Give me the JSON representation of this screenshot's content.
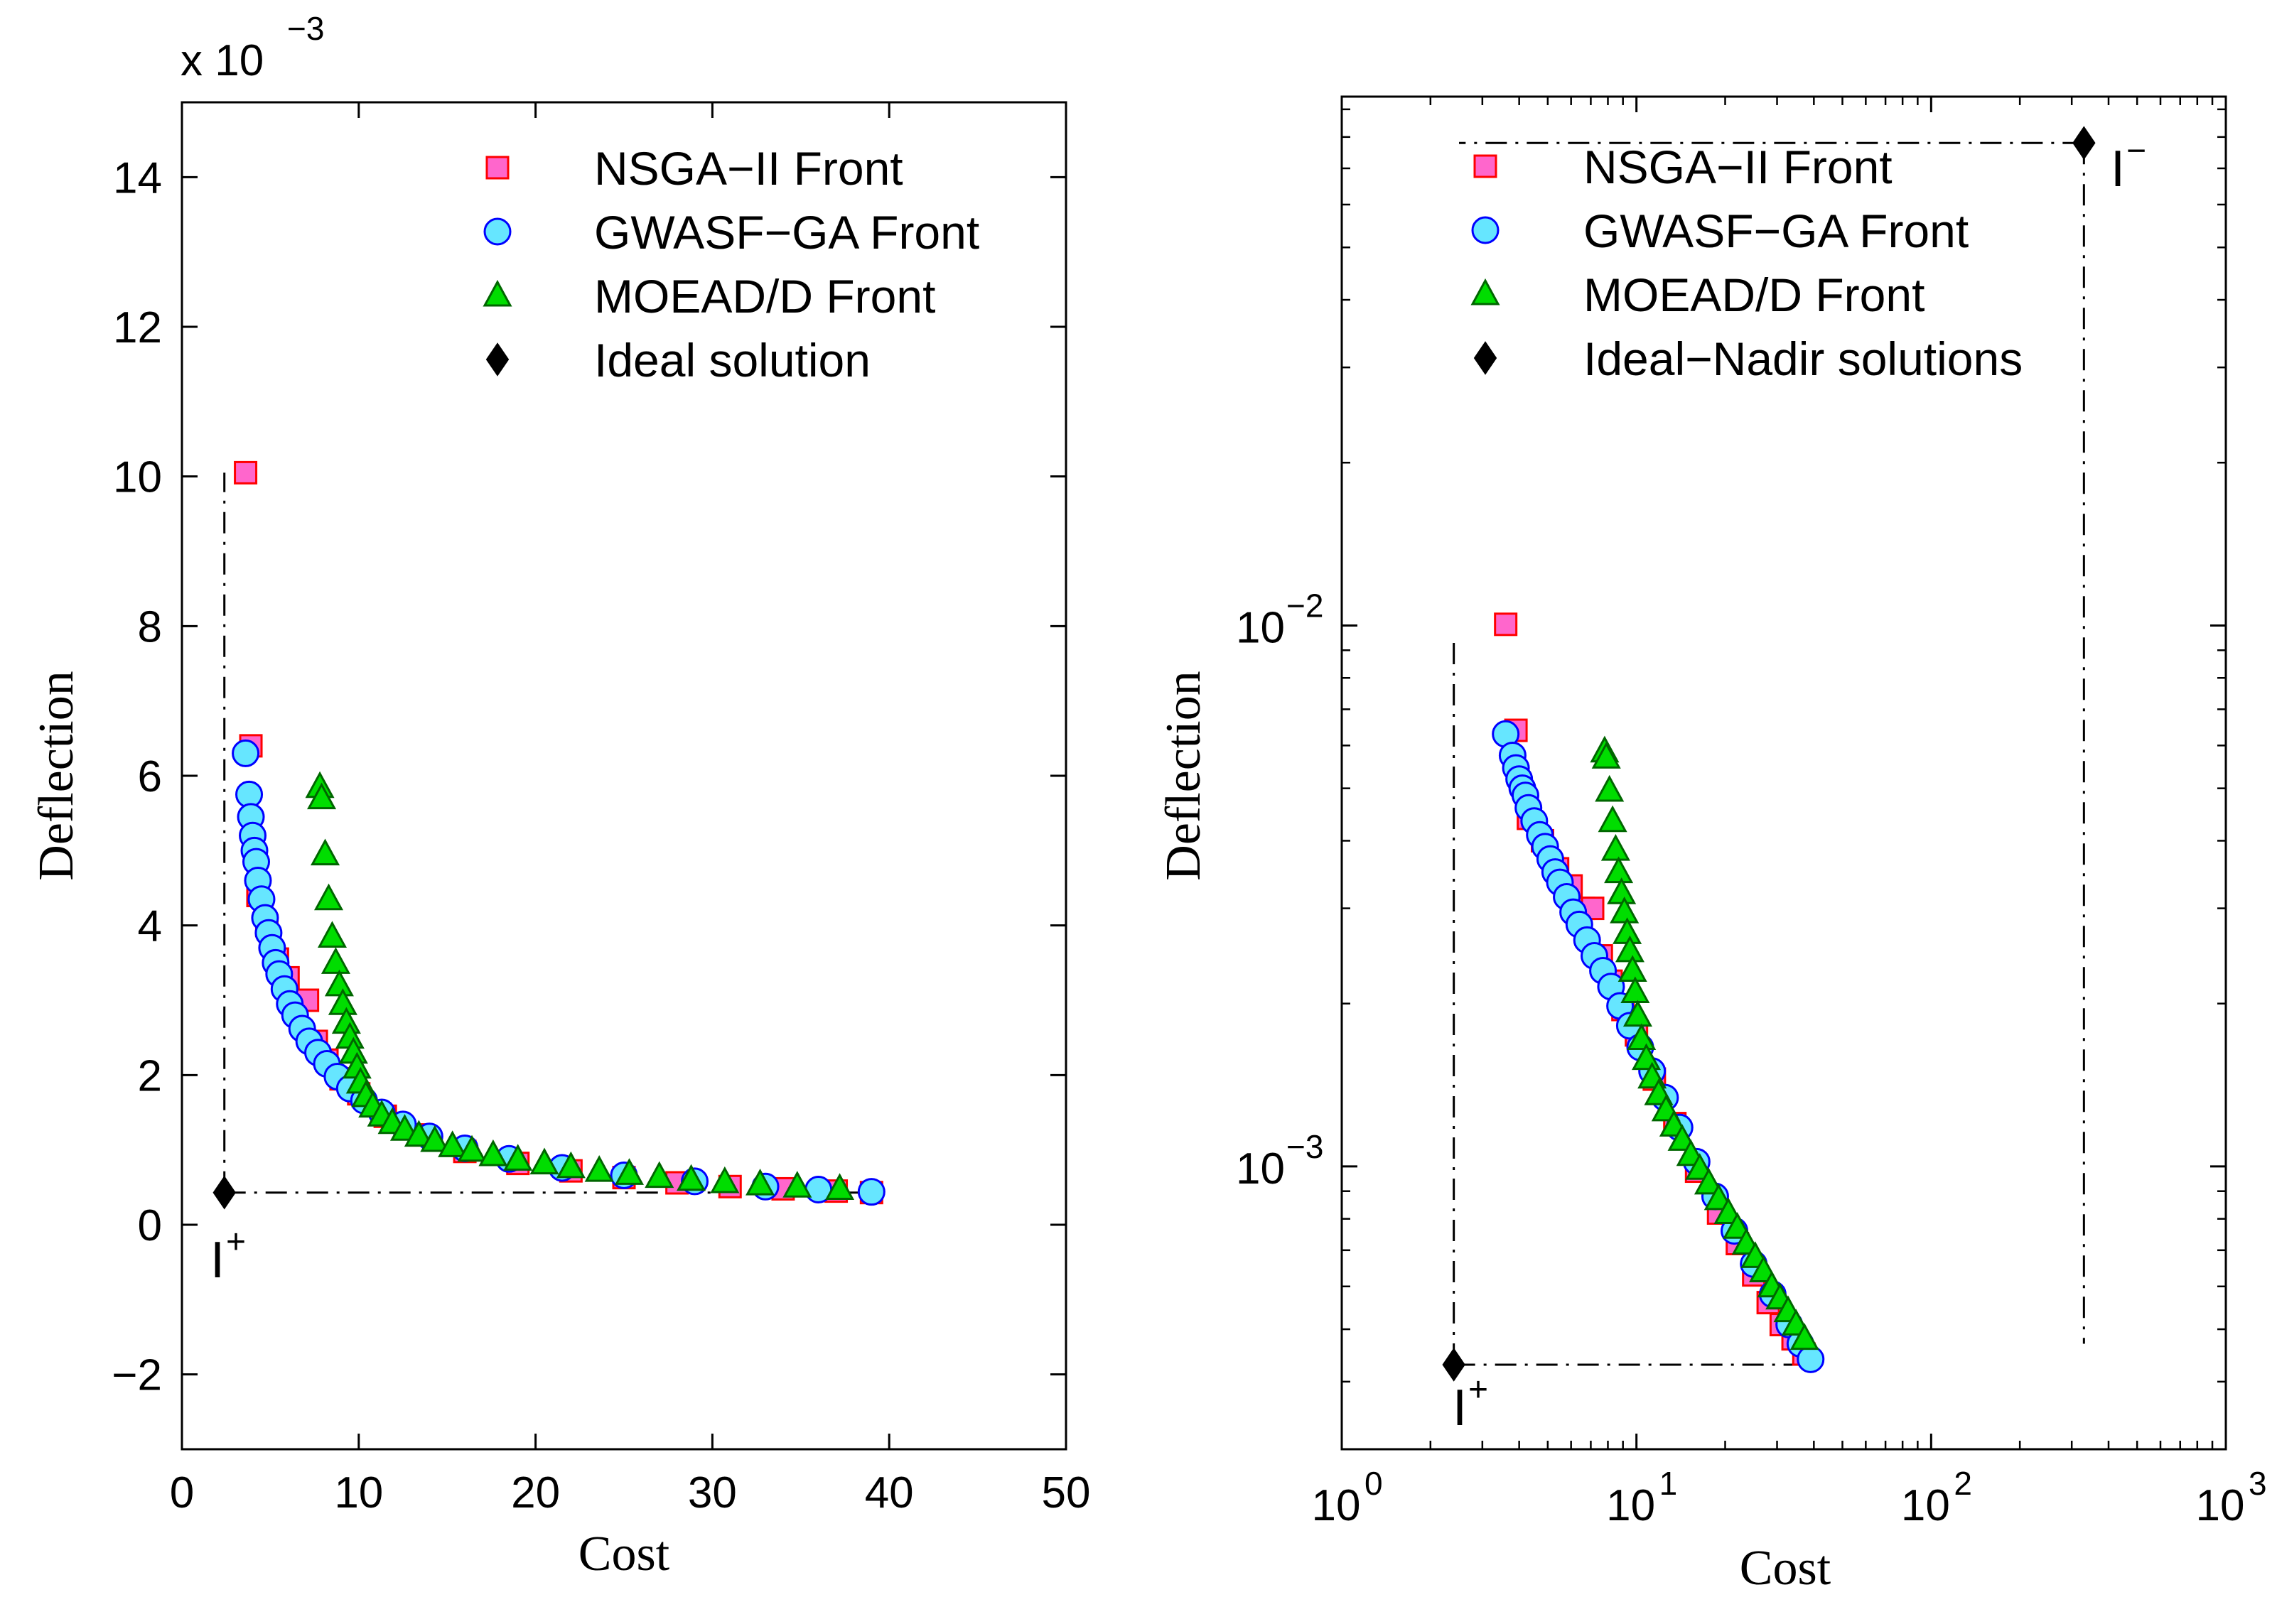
{
  "colors": {
    "nsga_fill": "#ff66cc",
    "nsga_edge": "#ff0000",
    "gwasf_fill": "#66e6ff",
    "gwasf_edge": "#0000ff",
    "moead_fill": "#00dd00",
    "moead_edge": "#006600",
    "ideal": "#000000"
  },
  "chart_data": [
    {
      "type": "scatter",
      "title": "",
      "xlabel": "Cost",
      "ylabel": "Deflection",
      "xscale": "linear",
      "yscale": "linear",
      "y_multiplier_label": "x 10",
      "y_multiplier_exponent": "−3",
      "xlim": [
        0,
        50
      ],
      "ylim": [
        -3,
        15
      ],
      "xticks": [
        0,
        10,
        20,
        30,
        40,
        50
      ],
      "xtick_labels": [
        "0",
        "10",
        "20",
        "30",
        "40",
        "50"
      ],
      "yticks": [
        -2,
        0,
        2,
        4,
        6,
        8,
        10,
        12,
        14
      ],
      "ytick_labels": [
        "−2",
        "0",
        "2",
        "4",
        "6",
        "8",
        "10",
        "12",
        "14"
      ],
      "legend_location": "top-right",
      "legend": [
        {
          "label": "NSGA−II Front",
          "marker": "square",
          "series": "nsga"
        },
        {
          "label": "GWASF−GA Front",
          "marker": "circle",
          "series": "gwasf"
        },
        {
          "label": "MOEAD/D Front",
          "marker": "triangle",
          "series": "moead"
        },
        {
          "label": "Ideal solution",
          "marker": "diamond",
          "series": "ideal"
        }
      ],
      "series": [
        {
          "name": "NSGA-II Front",
          "key": "nsga",
          "x": [
            3.6,
            3.9,
            4.3,
            4.8,
            5.4,
            6.0,
            6.6,
            7.1,
            7.6,
            8.2,
            9.0,
            10.0,
            11.5,
            13.5,
            16.0,
            19.0,
            22.0,
            25.0,
            28.0,
            31.0,
            34.0,
            37.0,
            39.0
          ],
          "y": [
            10.05,
            6.4,
            4.4,
            4.0,
            3.55,
            3.3,
            3.0,
            3.0,
            2.45,
            2.2,
            1.95,
            1.75,
            1.45,
            1.2,
            0.98,
            0.82,
            0.72,
            0.63,
            0.56,
            0.51,
            0.48,
            0.45,
            0.43
          ]
        },
        {
          "name": "GWASF-GA Front",
          "key": "gwasf",
          "x": [
            3.6,
            3.8,
            3.9,
            4.0,
            4.1,
            4.2,
            4.3,
            4.5,
            4.7,
            4.9,
            5.1,
            5.3,
            5.5,
            5.8,
            6.1,
            6.4,
            6.8,
            7.2,
            7.7,
            8.2,
            8.8,
            9.5,
            10.3,
            11.3,
            12.5,
            14.0,
            16.0,
            18.5,
            21.5,
            25.0,
            29.0,
            33.0,
            36.0,
            39.0
          ],
          "y": [
            6.3,
            5.75,
            5.45,
            5.2,
            5.0,
            4.85,
            4.6,
            4.35,
            4.1,
            3.9,
            3.7,
            3.5,
            3.35,
            3.15,
            2.95,
            2.8,
            2.62,
            2.45,
            2.3,
            2.15,
            1.98,
            1.82,
            1.66,
            1.5,
            1.34,
            1.18,
            1.02,
            0.88,
            0.76,
            0.66,
            0.58,
            0.51,
            0.47,
            0.44
          ]
        },
        {
          "name": "MOEAD/D Front",
          "key": "moead",
          "x": [
            7.8,
            7.9,
            8.1,
            8.3,
            8.5,
            8.7,
            8.9,
            9.1,
            9.3,
            9.5,
            9.7,
            9.9,
            10.1,
            10.4,
            10.8,
            11.3,
            11.9,
            12.6,
            13.4,
            14.3,
            15.3,
            16.4,
            17.6,
            19.0,
            20.5,
            22.0,
            23.6,
            25.3,
            27.0,
            28.8,
            30.7,
            32.7,
            34.8,
            37.2
          ],
          "y": [
            5.85,
            5.7,
            4.95,
            4.35,
            3.85,
            3.5,
            3.2,
            2.95,
            2.7,
            2.5,
            2.3,
            2.1,
            1.9,
            1.72,
            1.58,
            1.46,
            1.36,
            1.27,
            1.19,
            1.12,
            1.05,
            0.99,
            0.93,
            0.87,
            0.82,
            0.77,
            0.72,
            0.68,
            0.64,
            0.6,
            0.57,
            0.54,
            0.51,
            0.48
          ]
        },
        {
          "name": "Ideal solution",
          "key": "ideal",
          "x": [
            2.4
          ],
          "y": [
            0.43
          ]
        }
      ],
      "annotations": [
        {
          "text": "I",
          "superscript": "+"
        }
      ]
    },
    {
      "type": "scatter",
      "title": "",
      "xlabel": "Cost",
      "ylabel": "Deflection",
      "xscale": "log",
      "yscale": "log",
      "xlim": [
        1,
        1000
      ],
      "ylim": [
        0.0003,
        0.095
      ],
      "xtick_bases": [
        "10",
        "10",
        "10",
        "10"
      ],
      "xtick_exponents": [
        "0",
        "1",
        "2",
        "3"
      ],
      "ytick_bases": [
        "10",
        "10"
      ],
      "ytick_exponents": [
        "−2",
        "−3"
      ],
      "legend_location": "top-right",
      "legend": [
        {
          "label": "NSGA−II Front",
          "marker": "square",
          "series": "nsga"
        },
        {
          "label": "GWASF−GA Front",
          "marker": "circle",
          "series": "gwasf"
        },
        {
          "label": "MOEAD/D Front",
          "marker": "triangle",
          "series": "moead"
        },
        {
          "label": "Ideal−Nadir solutions",
          "marker": "diamond",
          "series": "ideal"
        }
      ],
      "series": [
        {
          "name": "NSGA-II Front",
          "key": "nsga",
          "x": [
            3.6,
            3.9,
            4.3,
            4.8,
            5.4,
            6.0,
            6.6,
            7.1,
            7.6,
            8.2,
            9.0,
            10.0,
            11.5,
            13.5,
            16.0,
            19.0,
            22.0,
            25.0,
            28.0,
            31.0,
            34.0,
            37.0
          ],
          "y": [
            0.01005,
            0.0064,
            0.0044,
            0.004,
            0.00355,
            0.0033,
            0.003,
            0.003,
            0.00245,
            0.0022,
            0.00195,
            0.00175,
            0.00145,
            0.0012,
            0.00098,
            0.00082,
            0.00072,
            0.00063,
            0.00056,
            0.00051,
            0.00048,
            0.00045
          ]
        },
        {
          "name": "GWASF-GA Front",
          "key": "gwasf",
          "x": [
            3.6,
            3.8,
            3.9,
            4.0,
            4.1,
            4.2,
            4.3,
            4.5,
            4.7,
            4.9,
            5.1,
            5.3,
            5.5,
            5.8,
            6.1,
            6.4,
            6.8,
            7.2,
            7.7,
            8.2,
            8.8,
            9.5,
            10.3,
            11.3,
            12.5,
            14.0,
            16.0,
            18.5,
            21.5,
            25.0,
            29.0,
            33.0,
            36.0,
            39.0
          ],
          "y": [
            0.0063,
            0.00575,
            0.00545,
            0.0052,
            0.005,
            0.00485,
            0.0046,
            0.00435,
            0.0041,
            0.0039,
            0.0037,
            0.0035,
            0.00335,
            0.00315,
            0.00295,
            0.0028,
            0.00262,
            0.00245,
            0.0023,
            0.00215,
            0.00198,
            0.00182,
            0.00166,
            0.0015,
            0.00134,
            0.00118,
            0.00102,
            0.00088,
            0.00076,
            0.00066,
            0.00058,
            0.00051,
            0.00047,
            0.00044
          ]
        },
        {
          "name": "MOEAD/D Front",
          "key": "moead",
          "x": [
            7.8,
            7.9,
            8.1,
            8.3,
            8.5,
            8.7,
            8.9,
            9.1,
            9.3,
            9.5,
            9.7,
            9.9,
            10.1,
            10.4,
            10.8,
            11.3,
            11.9,
            12.6,
            13.4,
            14.3,
            15.3,
            16.4,
            17.6,
            19.0,
            20.5,
            22.0,
            23.6,
            25.3,
            27.0,
            28.8,
            30.7,
            32.7,
            34.8,
            37.2
          ],
          "y": [
            0.00585,
            0.0057,
            0.00495,
            0.00435,
            0.00385,
            0.0035,
            0.0032,
            0.00295,
            0.0027,
            0.0025,
            0.0023,
            0.0021,
            0.0019,
            0.00172,
            0.00158,
            0.00146,
            0.00136,
            0.00127,
            0.00119,
            0.00112,
            0.00105,
            0.00099,
            0.00093,
            0.00087,
            0.00082,
            0.00077,
            0.00072,
            0.00068,
            0.00064,
            0.0006,
            0.00057,
            0.00054,
            0.00051,
            0.00048
          ]
        },
        {
          "name": "Ideal-Nadir solutions",
          "key": "ideal",
          "x": [
            2.4,
            330
          ],
          "y": [
            0.00043,
            0.078
          ]
        }
      ],
      "annotations": [
        {
          "text": "I",
          "superscript": "+"
        },
        {
          "text": "I",
          "superscript": "−"
        }
      ]
    }
  ]
}
